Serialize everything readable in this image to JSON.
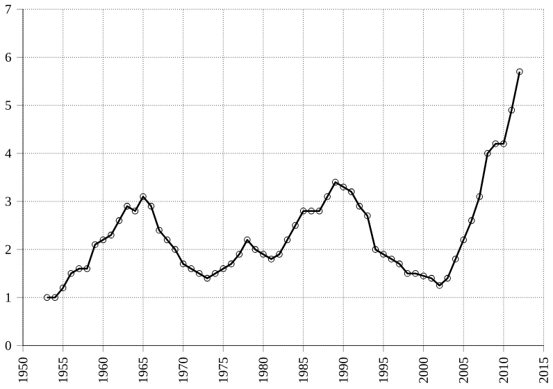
{
  "chart_data": {
    "type": "line",
    "marker": "circle",
    "grid": true,
    "color": "#000000",
    "x": [
      1953,
      1954,
      1955,
      1956,
      1957,
      1958,
      1959,
      1960,
      1961,
      1962,
      1963,
      1964,
      1965,
      1966,
      1967,
      1968,
      1969,
      1970,
      1971,
      1972,
      1973,
      1974,
      1975,
      1976,
      1977,
      1978,
      1979,
      1980,
      1981,
      1982,
      1983,
      1984,
      1985,
      1986,
      1987,
      1988,
      1989,
      1990,
      1991,
      1992,
      1993,
      1994,
      1995,
      1996,
      1997,
      1998,
      1999,
      2000,
      2001,
      2002,
      2003,
      2004,
      2005,
      2006,
      2007,
      2008,
      2009,
      2010,
      2011,
      2012
    ],
    "values": [
      1.0,
      1.0,
      1.2,
      1.5,
      1.6,
      1.6,
      2.1,
      2.2,
      2.3,
      2.6,
      2.9,
      2.8,
      3.1,
      2.9,
      2.4,
      2.2,
      2.0,
      1.7,
      1.6,
      1.5,
      1.4,
      1.5,
      1.6,
      1.7,
      1.9,
      2.2,
      2.0,
      1.9,
      1.8,
      1.9,
      2.2,
      2.5,
      2.8,
      2.8,
      2.8,
      3.1,
      3.4,
      3.3,
      3.2,
      2.9,
      2.7,
      2.0,
      1.9,
      1.8,
      1.7,
      1.5,
      1.5,
      1.45,
      1.4,
      1.25,
      1.4,
      1.8,
      2.2,
      2.6,
      3.1,
      4.0,
      4.2,
      4.2,
      4.9,
      5.7
    ],
    "xlim": [
      1950,
      2015
    ],
    "ylim": [
      0,
      7
    ],
    "xticks": [
      1950,
      1955,
      1960,
      1965,
      1970,
      1975,
      1980,
      1985,
      1990,
      1995,
      2000,
      2005,
      2010,
      2015
    ],
    "yticks": [
      0,
      1,
      2,
      3,
      4,
      5,
      6,
      7
    ]
  }
}
